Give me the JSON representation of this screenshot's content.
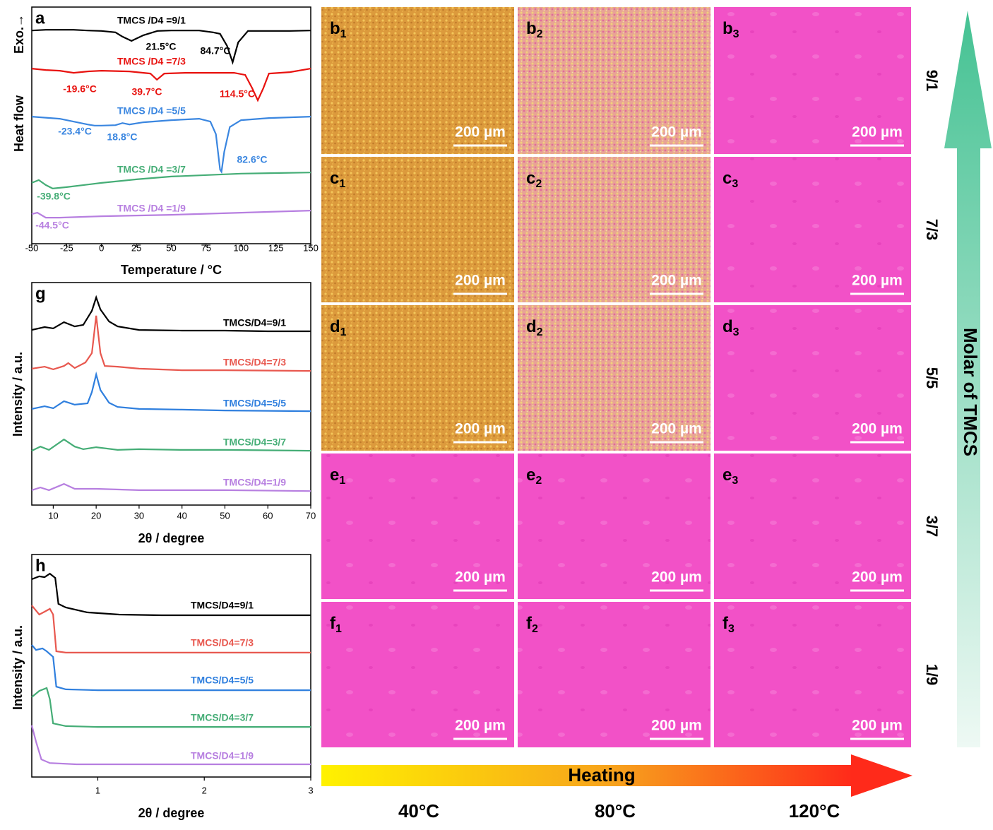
{
  "chart_data": [
    {
      "type": "line",
      "panel_label": "a",
      "x_label": "Temperature / °C",
      "y_labels": [
        "Exo.→",
        "Heat flow"
      ],
      "xlim": [
        -50,
        150
      ],
      "xticks": [
        -50,
        -25,
        0,
        25,
        50,
        75,
        100,
        125,
        150
      ],
      "ylim": [
        0,
        100
      ],
      "series": [
        {
          "name": "TMCS /D4 =9/1",
          "color": "#000000",
          "x": [
            -50,
            -40,
            -30,
            -20,
            -10,
            0,
            10,
            15,
            21.5,
            30,
            40,
            50,
            60,
            70,
            80,
            85,
            90,
            94,
            98,
            105,
            115,
            125,
            135,
            150
          ],
          "values": [
            90.1,
            90.4,
            90.4,
            90.4,
            90.1,
            89.9,
            89.3,
            87.5,
            85.7,
            88.1,
            89.9,
            90.1,
            90.1,
            90.1,
            89.3,
            88.7,
            83.6,
            76.7,
            85.1,
            89.9,
            89.9,
            89.9,
            89.9,
            90.1
          ]
        },
        {
          "name": "TMCS /D4 =7/3",
          "color": "#e8120f",
          "x": [
            -50,
            -40,
            -30,
            -20,
            -10,
            0,
            20,
            35,
            39.7,
            45,
            60,
            80,
            95,
            103,
            108,
            112,
            116,
            120,
            135,
            150
          ],
          "values": [
            74.0,
            73.4,
            73.1,
            72.2,
            72.8,
            73.1,
            72.8,
            71.9,
            69.3,
            71.9,
            72.2,
            72.2,
            72.2,
            71.3,
            65.7,
            60.6,
            65.7,
            71.9,
            72.5,
            74.0
          ]
        },
        {
          "name": "TMCS /D4 =5/5",
          "color": "#3a86e0",
          "x": [
            -50,
            -30,
            -10,
            -5,
            0,
            10,
            15,
            20,
            30,
            50,
            70,
            78,
            82,
            85,
            86,
            88,
            92,
            100,
            120,
            150
          ],
          "values": [
            53.7,
            52.8,
            50.4,
            49.9,
            49.9,
            50.1,
            51.0,
            50.4,
            51.3,
            52.2,
            52.8,
            51.6,
            46.3,
            31.3,
            30.4,
            38.8,
            49.3,
            52.2,
            53.1,
            53.7
          ]
        },
        {
          "name": "TMCS /D4 =3/7",
          "color": "#45ad76",
          "x": [
            -50,
            -45,
            -40,
            -35,
            -25,
            0,
            25,
            50,
            100,
            150
          ],
          "values": [
            25.7,
            26.9,
            24.8,
            23.3,
            23.9,
            25.7,
            27.2,
            28.4,
            29.6,
            30.1
          ]
        },
        {
          "name": "TMCS /D4 =1/9",
          "color": "#b77fe0",
          "x": [
            -50,
            -46,
            -40,
            -30,
            0,
            50,
            100,
            150
          ],
          "values": [
            12.5,
            13.1,
            11.0,
            11.0,
            11.6,
            12.2,
            13.1,
            14.0
          ]
        }
      ],
      "annotations": [
        {
          "text": "21.5°C",
          "color": "#000000"
        },
        {
          "text": "84.7°C",
          "color": "#000000"
        },
        {
          "text": "-19.6°C",
          "color": "#e8120f"
        },
        {
          "text": "39.7°C",
          "color": "#e8120f"
        },
        {
          "text": "114.5°C",
          "color": "#e8120f"
        },
        {
          "text": "-23.4°C",
          "color": "#3a86e0"
        },
        {
          "text": "18.8°C",
          "color": "#3a86e0"
        },
        {
          "text": "82.6°C",
          "color": "#3a86e0"
        },
        {
          "text": "-39.8°C",
          "color": "#45ad76"
        },
        {
          "text": "-44.5°C",
          "color": "#b77fe0"
        }
      ]
    },
    {
      "type": "line",
      "panel_label": "g",
      "x_label": "2θ / degree",
      "y_labels": [
        "Intensity / a.u."
      ],
      "xlim": [
        5,
        70
      ],
      "xticks": [
        10,
        20,
        30,
        40,
        50,
        60,
        70
      ],
      "ylim": [
        0,
        100
      ],
      "series": [
        {
          "name": "TMCS/D4=9/1",
          "color": "#000000",
          "x": [
            5,
            8,
            10,
            12.5,
            15,
            17,
            19,
            20,
            21,
            23,
            25,
            30,
            40,
            50,
            60,
            70
          ],
          "values": [
            78.7,
            80.0,
            79.4,
            82.2,
            80.3,
            81.0,
            87.3,
            93.3,
            87.9,
            82.5,
            80.3,
            78.7,
            78.4,
            78.4,
            78.1,
            78.1
          ]
        },
        {
          "name": "TMCS/D4=7/3",
          "color": "#e8584f",
          "x": [
            5,
            8,
            10,
            12.5,
            13.5,
            15,
            17.5,
            19,
            20,
            21,
            22,
            25,
            30,
            40,
            50,
            70
          ],
          "values": [
            61.3,
            62.2,
            61.0,
            62.5,
            63.8,
            61.6,
            64.1,
            68.3,
            85.1,
            68.3,
            62.5,
            62.2,
            61.3,
            60.6,
            60.6,
            60.3
          ]
        },
        {
          "name": "TMCS/D4=5/5",
          "color": "#2f7fde",
          "x": [
            5,
            8,
            10,
            12.5,
            15,
            18,
            19,
            20,
            21,
            23,
            25,
            30,
            40,
            50,
            70
          ],
          "values": [
            43.2,
            44.4,
            43.5,
            46.7,
            45.1,
            45.7,
            50.8,
            58.7,
            51.7,
            46.0,
            44.1,
            43.2,
            42.9,
            42.5,
            42.2
          ]
        },
        {
          "name": "TMCS/D4=3/7",
          "color": "#45ad76",
          "x": [
            5,
            7,
            9,
            12.5,
            15,
            17,
            20,
            25,
            30,
            40,
            50,
            70
          ],
          "values": [
            24.4,
            26.3,
            24.8,
            29.5,
            26.3,
            25.1,
            26.0,
            24.8,
            25.1,
            24.8,
            24.8,
            24.4
          ]
        },
        {
          "name": "TMCS/D4=1/9",
          "color": "#b77fe0",
          "x": [
            5,
            7,
            9,
            12.5,
            15,
            20,
            30,
            50,
            70
          ],
          "values": [
            6.7,
            7.9,
            6.7,
            9.5,
            7.3,
            7.3,
            6.7,
            6.7,
            6.3
          ]
        }
      ]
    },
    {
      "type": "line",
      "panel_label": "h",
      "x_label": "2θ / degree",
      "y_labels": [
        "Intensity / a.u."
      ],
      "xlim": [
        0.38,
        3
      ],
      "xticks": [
        1,
        2,
        3
      ],
      "ylim": [
        0,
        100
      ],
      "series": [
        {
          "name": "TMCS/D4=9/1",
          "color": "#000000",
          "x": [
            0.38,
            0.45,
            0.5,
            0.55,
            0.6,
            0.63,
            0.7,
            0.9,
            1.2,
            1.6,
            3
          ],
          "values": [
            88.9,
            90.2,
            89.8,
            91.4,
            89.5,
            77.8,
            76.2,
            74.0,
            73.0,
            72.7,
            72.7
          ]
        },
        {
          "name": "TMCS/D4=7/3",
          "color": "#e8584f",
          "x": [
            0.38,
            0.45,
            0.5,
            0.55,
            0.58,
            0.61,
            0.7,
            1,
            3
          ],
          "values": [
            77.1,
            73.0,
            74.3,
            75.6,
            73.0,
            56.5,
            55.9,
            55.9,
            55.9
          ]
        },
        {
          "name": "TMCS/D4=5/5",
          "color": "#2f7fde",
          "x": [
            0.38,
            0.42,
            0.48,
            0.52,
            0.58,
            0.61,
            0.7,
            1,
            3
          ],
          "values": [
            59.4,
            57.1,
            57.8,
            56.5,
            54.0,
            40.6,
            39.4,
            39.0,
            39.0
          ]
        },
        {
          "name": "TMCS/D4=3/7",
          "color": "#45ad76",
          "x": [
            0.38,
            0.45,
            0.52,
            0.55,
            0.58,
            0.7,
            1,
            3
          ],
          "values": [
            35.9,
            38.7,
            40.0,
            34.9,
            24.1,
            22.9,
            22.5,
            22.5
          ]
        },
        {
          "name": "TMCS/D4=1/9",
          "color": "#b77fe0",
          "x": [
            0.38,
            0.42,
            0.47,
            0.55,
            0.8,
            3
          ],
          "values": [
            23.2,
            15.9,
            7.9,
            6.3,
            5.7,
            5.7
          ]
        }
      ]
    }
  ],
  "micrographs": {
    "scale_bar": "200 µm",
    "rows": [
      {
        "ratio": "9/1",
        "panels": [
          {
            "letter": "b",
            "sub": "1"
          },
          {
            "letter": "b",
            "sub": "2"
          },
          {
            "letter": "b",
            "sub": "3"
          }
        ]
      },
      {
        "ratio": "7/3",
        "panels": [
          {
            "letter": "c",
            "sub": "1"
          },
          {
            "letter": "c",
            "sub": "2"
          },
          {
            "letter": "c",
            "sub": "3"
          }
        ]
      },
      {
        "ratio": "5/5",
        "panels": [
          {
            "letter": "d",
            "sub": "1"
          },
          {
            "letter": "d",
            "sub": "2"
          },
          {
            "letter": "d",
            "sub": "3"
          }
        ]
      },
      {
        "ratio": "3/7",
        "panels": [
          {
            "letter": "e",
            "sub": "1"
          },
          {
            "letter": "e",
            "sub": "2"
          },
          {
            "letter": "e",
            "sub": "3"
          }
        ]
      },
      {
        "ratio": "1/9",
        "panels": [
          {
            "letter": "f",
            "sub": "1"
          },
          {
            "letter": "f",
            "sub": "2"
          },
          {
            "letter": "f",
            "sub": "3"
          }
        ]
      }
    ],
    "columns": [
      "40°C",
      "80°C",
      "120°C"
    ],
    "x_label": "Heating",
    "y_label": "Molar of TMCS"
  }
}
